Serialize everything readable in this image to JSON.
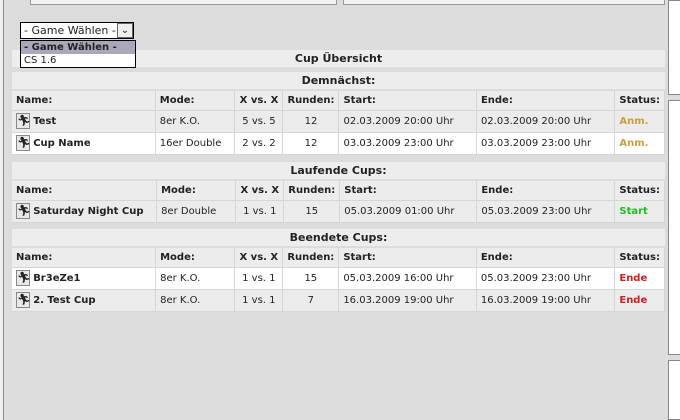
{
  "select": {
    "value": "- Game Wählen -",
    "options": [
      "- Game Wählen -",
      "CS 1.6"
    ]
  },
  "title": "Cup Übersicht",
  "columns": [
    "Name:",
    "Mode:",
    "X vs. X",
    "Runden:",
    "Start:",
    "Ende:",
    "Status:"
  ],
  "colors": {
    "anm": "#c8a040",
    "start": "#22bb22",
    "ende": "#cc2222"
  },
  "sections": [
    {
      "title": "Demnächst:",
      "rows": [
        {
          "name": "Test",
          "mode": "8er K.O.",
          "xvx": "5 vs. 5",
          "runden": "12",
          "start": "02.03.2009 20:00 Uhr",
          "ende": "02.03.2009 20:00 Uhr",
          "status": "Anm.",
          "type": "anm"
        },
        {
          "name": "Cup Name",
          "mode": "16er Double",
          "xvx": "2 vs. 2",
          "runden": "12",
          "start": "03.03.2009 23:00 Uhr",
          "ende": "03.03.2009 23:00 Uhr",
          "status": "Anm.",
          "type": "anm"
        }
      ]
    },
    {
      "title": "Laufende Cups:",
      "rows": [
        {
          "name": "Saturday Night Cup",
          "mode": "8er Double",
          "xvx": "1 vs. 1",
          "runden": "15",
          "start": "05.03.2009 01:00 Uhr",
          "ende": "05.03.2009 23:00 Uhr",
          "status": "Start",
          "type": "start"
        }
      ]
    },
    {
      "title": "Beendete Cups:",
      "rows": [
        {
          "name": "Br3eZe1",
          "mode": "8er K.O.",
          "xvx": "1 vs. 1",
          "runden": "15",
          "start": "05.03.2009 16:00 Uhr",
          "ende": "05.03.2009 23:00 Uhr",
          "status": "Ende",
          "type": "ende"
        },
        {
          "name": "2. Test Cup",
          "mode": "8er K.O.",
          "xvx": "1 vs. 1",
          "runden": "7",
          "start": "16.03.2009 19:00 Uhr",
          "ende": "16.03.2009 19:00 Uhr",
          "status": "Ende",
          "type": "ende"
        }
      ]
    }
  ]
}
